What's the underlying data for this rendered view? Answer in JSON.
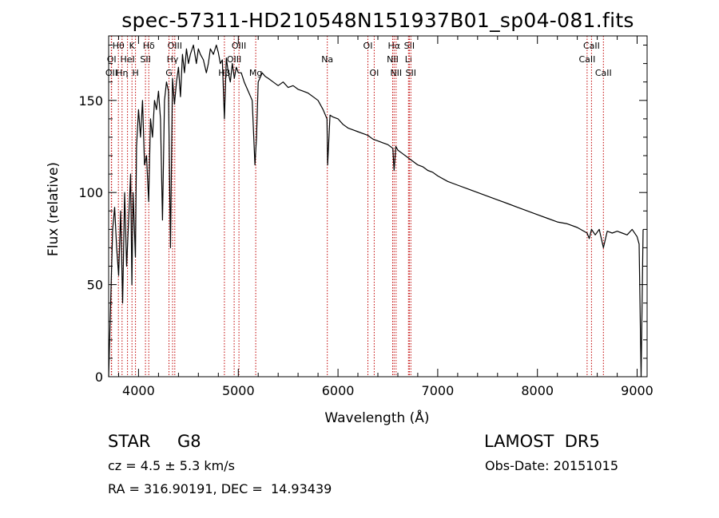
{
  "chart_data": {
    "type": "line",
    "title": "spec-57311-HD210548N151937B01_sp04-081.fits",
    "xlabel": "Wavelength (Å)",
    "ylabel": "Flux (relative)",
    "xlim": [
      3700,
      9100
    ],
    "ylim": [
      0,
      185
    ],
    "x_ticks": [
      4000,
      5000,
      6000,
      7000,
      8000,
      9000
    ],
    "y_ticks": [
      0,
      50,
      100,
      150
    ],
    "grid": false,
    "series": [
      {
        "x": [
          3700,
          3720,
          3740,
          3760,
          3780,
          3800,
          3820,
          3840,
          3860,
          3880,
          3900,
          3920,
          3933,
          3945,
          3968,
          3980,
          4000,
          4020,
          4040,
          4060,
          4080,
          4101,
          4120,
          4140,
          4160,
          4180,
          4200,
          4220,
          4240,
          4260,
          4280,
          4300,
          4320,
          4340,
          4360,
          4380,
          4400,
          4420,
          4440,
          4460,
          4480,
          4500,
          4520,
          4550,
          4580,
          4600,
          4620,
          4650,
          4680,
          4700,
          4720,
          4750,
          4780,
          4800,
          4820,
          4840,
          4861,
          4880,
          4900,
          4920,
          4940,
          4960,
          4980,
          5000,
          5030,
          5060,
          5100,
          5140,
          5167,
          5183,
          5200,
          5240,
          5270,
          5300,
          5350,
          5400,
          5450,
          5500,
          5550,
          5600,
          5650,
          5700,
          5750,
          5800,
          5850,
          5890,
          5896,
          5920,
          5950,
          6000,
          6050,
          6100,
          6150,
          6200,
          6250,
          6300,
          6350,
          6400,
          6450,
          6500,
          6550,
          6563,
          6580,
          6600,
          6650,
          6700,
          6750,
          6800,
          6850,
          6900,
          6950,
          7000,
          7100,
          7200,
          7300,
          7400,
          7500,
          7600,
          7700,
          7800,
          7900,
          8000,
          8100,
          8200,
          8300,
          8400,
          8498,
          8520,
          8542,
          8580,
          8620,
          8662,
          8700,
          8750,
          8800,
          8850,
          8900,
          8950,
          9000,
          9020,
          9040,
          9060
        ],
        "values": [
          0,
          40,
          80,
          92,
          70,
          55,
          90,
          40,
          100,
          60,
          85,
          110,
          50,
          100,
          65,
          125,
          145,
          130,
          150,
          115,
          120,
          95,
          140,
          130,
          150,
          145,
          155,
          140,
          85,
          150,
          160,
          155,
          70,
          162,
          148,
          160,
          168,
          152,
          175,
          165,
          178,
          170,
          175,
          180,
          170,
          178,
          175,
          172,
          165,
          170,
          178,
          175,
          180,
          176,
          170,
          172,
          140,
          173,
          165,
          160,
          170,
          162,
          168,
          165,
          165,
          160,
          155,
          150,
          115,
          130,
          160,
          165,
          163,
          162,
          160,
          158,
          160,
          157,
          158,
          156,
          155,
          154,
          152,
          150,
          145,
          140,
          115,
          142,
          141,
          140,
          137,
          135,
          134,
          133,
          132,
          131,
          129,
          128,
          127,
          126,
          124,
          112,
          125,
          123,
          121,
          119,
          117,
          115,
          114,
          112,
          111,
          109,
          106,
          104,
          102,
          100,
          98,
          96,
          94,
          92,
          90,
          88,
          86,
          84,
          83,
          81,
          78,
          75,
          80,
          77,
          80,
          70,
          79,
          78,
          79,
          78,
          77,
          80,
          76,
          72,
          0,
          80
        ]
      }
    ],
    "line_color": "#000000",
    "line_marker_color": "#c00000",
    "line_markers": [
      {
        "label": "Hθ",
        "x": 3798,
        "row": 0
      },
      {
        "label": "K",
        "x": 3934,
        "row": 0
      },
      {
        "label": "Hδ",
        "x": 4102,
        "row": 0
      },
      {
        "label": "OI",
        "x": 3730,
        "row": 1
      },
      {
        "label": "HeI",
        "x": 3889,
        "row": 1
      },
      {
        "label": "SII",
        "x": 4069,
        "row": 1
      },
      {
        "label": "OII",
        "x": 3727,
        "row": 2
      },
      {
        "label": "Hη",
        "x": 3835,
        "row": 2
      },
      {
        "label": "H",
        "x": 3969,
        "row": 2
      },
      {
        "label": "OIII",
        "x": 4363,
        "row": 0
      },
      {
        "label": "Hγ",
        "x": 4341,
        "row": 1
      },
      {
        "label": "G",
        "x": 4305,
        "row": 2
      },
      {
        "label": "OIII",
        "x": 5007,
        "row": 0
      },
      {
        "label": "OIII",
        "x": 4959,
        "row": 1
      },
      {
        "label": "Hβ",
        "x": 4861,
        "row": 2
      },
      {
        "label": "Mg",
        "x": 5175,
        "row": 2
      },
      {
        "label": "Na",
        "x": 5893,
        "row": 1
      },
      {
        "label": "OI",
        "x": 6300,
        "row": 0
      },
      {
        "label": "OI",
        "x": 6363,
        "row": 2
      },
      {
        "label": "Hα",
        "x": 6563,
        "row": 0
      },
      {
        "label": "SII",
        "x": 6716,
        "row": 0
      },
      {
        "label": "NII",
        "x": 6548,
        "row": 1
      },
      {
        "label": "Li",
        "x": 6707,
        "row": 1
      },
      {
        "label": "NII",
        "x": 6583,
        "row": 2
      },
      {
        "label": "SII",
        "x": 6731,
        "row": 2
      },
      {
        "label": "CaII",
        "x": 8542,
        "row": 0
      },
      {
        "label": "CaII",
        "x": 8498,
        "row": 1
      },
      {
        "label": "CaII",
        "x": 8662,
        "row": 2
      }
    ]
  },
  "info": {
    "class_label": "STAR",
    "subclass": "G8",
    "cz": "cz = 4.5 ± 5.3 km/s",
    "radec": "RA = 316.90191, DEC =  14.93439",
    "survey": "LAMOST  DR5",
    "obs_date": "Obs-Date: 20151015"
  }
}
